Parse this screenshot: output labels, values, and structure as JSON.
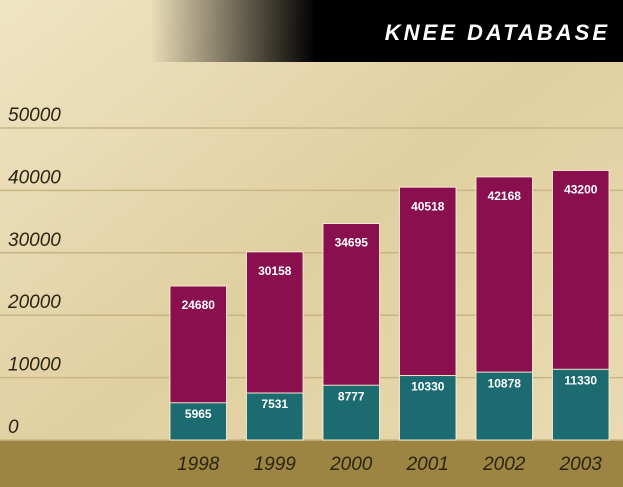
{
  "chart_data": {
    "type": "bar",
    "title": "KNEE DATABASE",
    "categories": [
      "1998",
      "1999",
      "2000",
      "2001",
      "2002",
      "2003"
    ],
    "series": [
      {
        "color": "#8a0f4f",
        "values": [
          24680,
          30158,
          34695,
          40518,
          42168,
          43200
        ]
      },
      {
        "color": "#1b6b70",
        "values": [
          5965,
          7531,
          8777,
          10330,
          10878,
          11330
        ]
      }
    ],
    "ylim": [
      0,
      60000
    ],
    "yticks": [
      0,
      10000,
      20000,
      30000,
      40000,
      50000
    ],
    "grid": true
  }
}
